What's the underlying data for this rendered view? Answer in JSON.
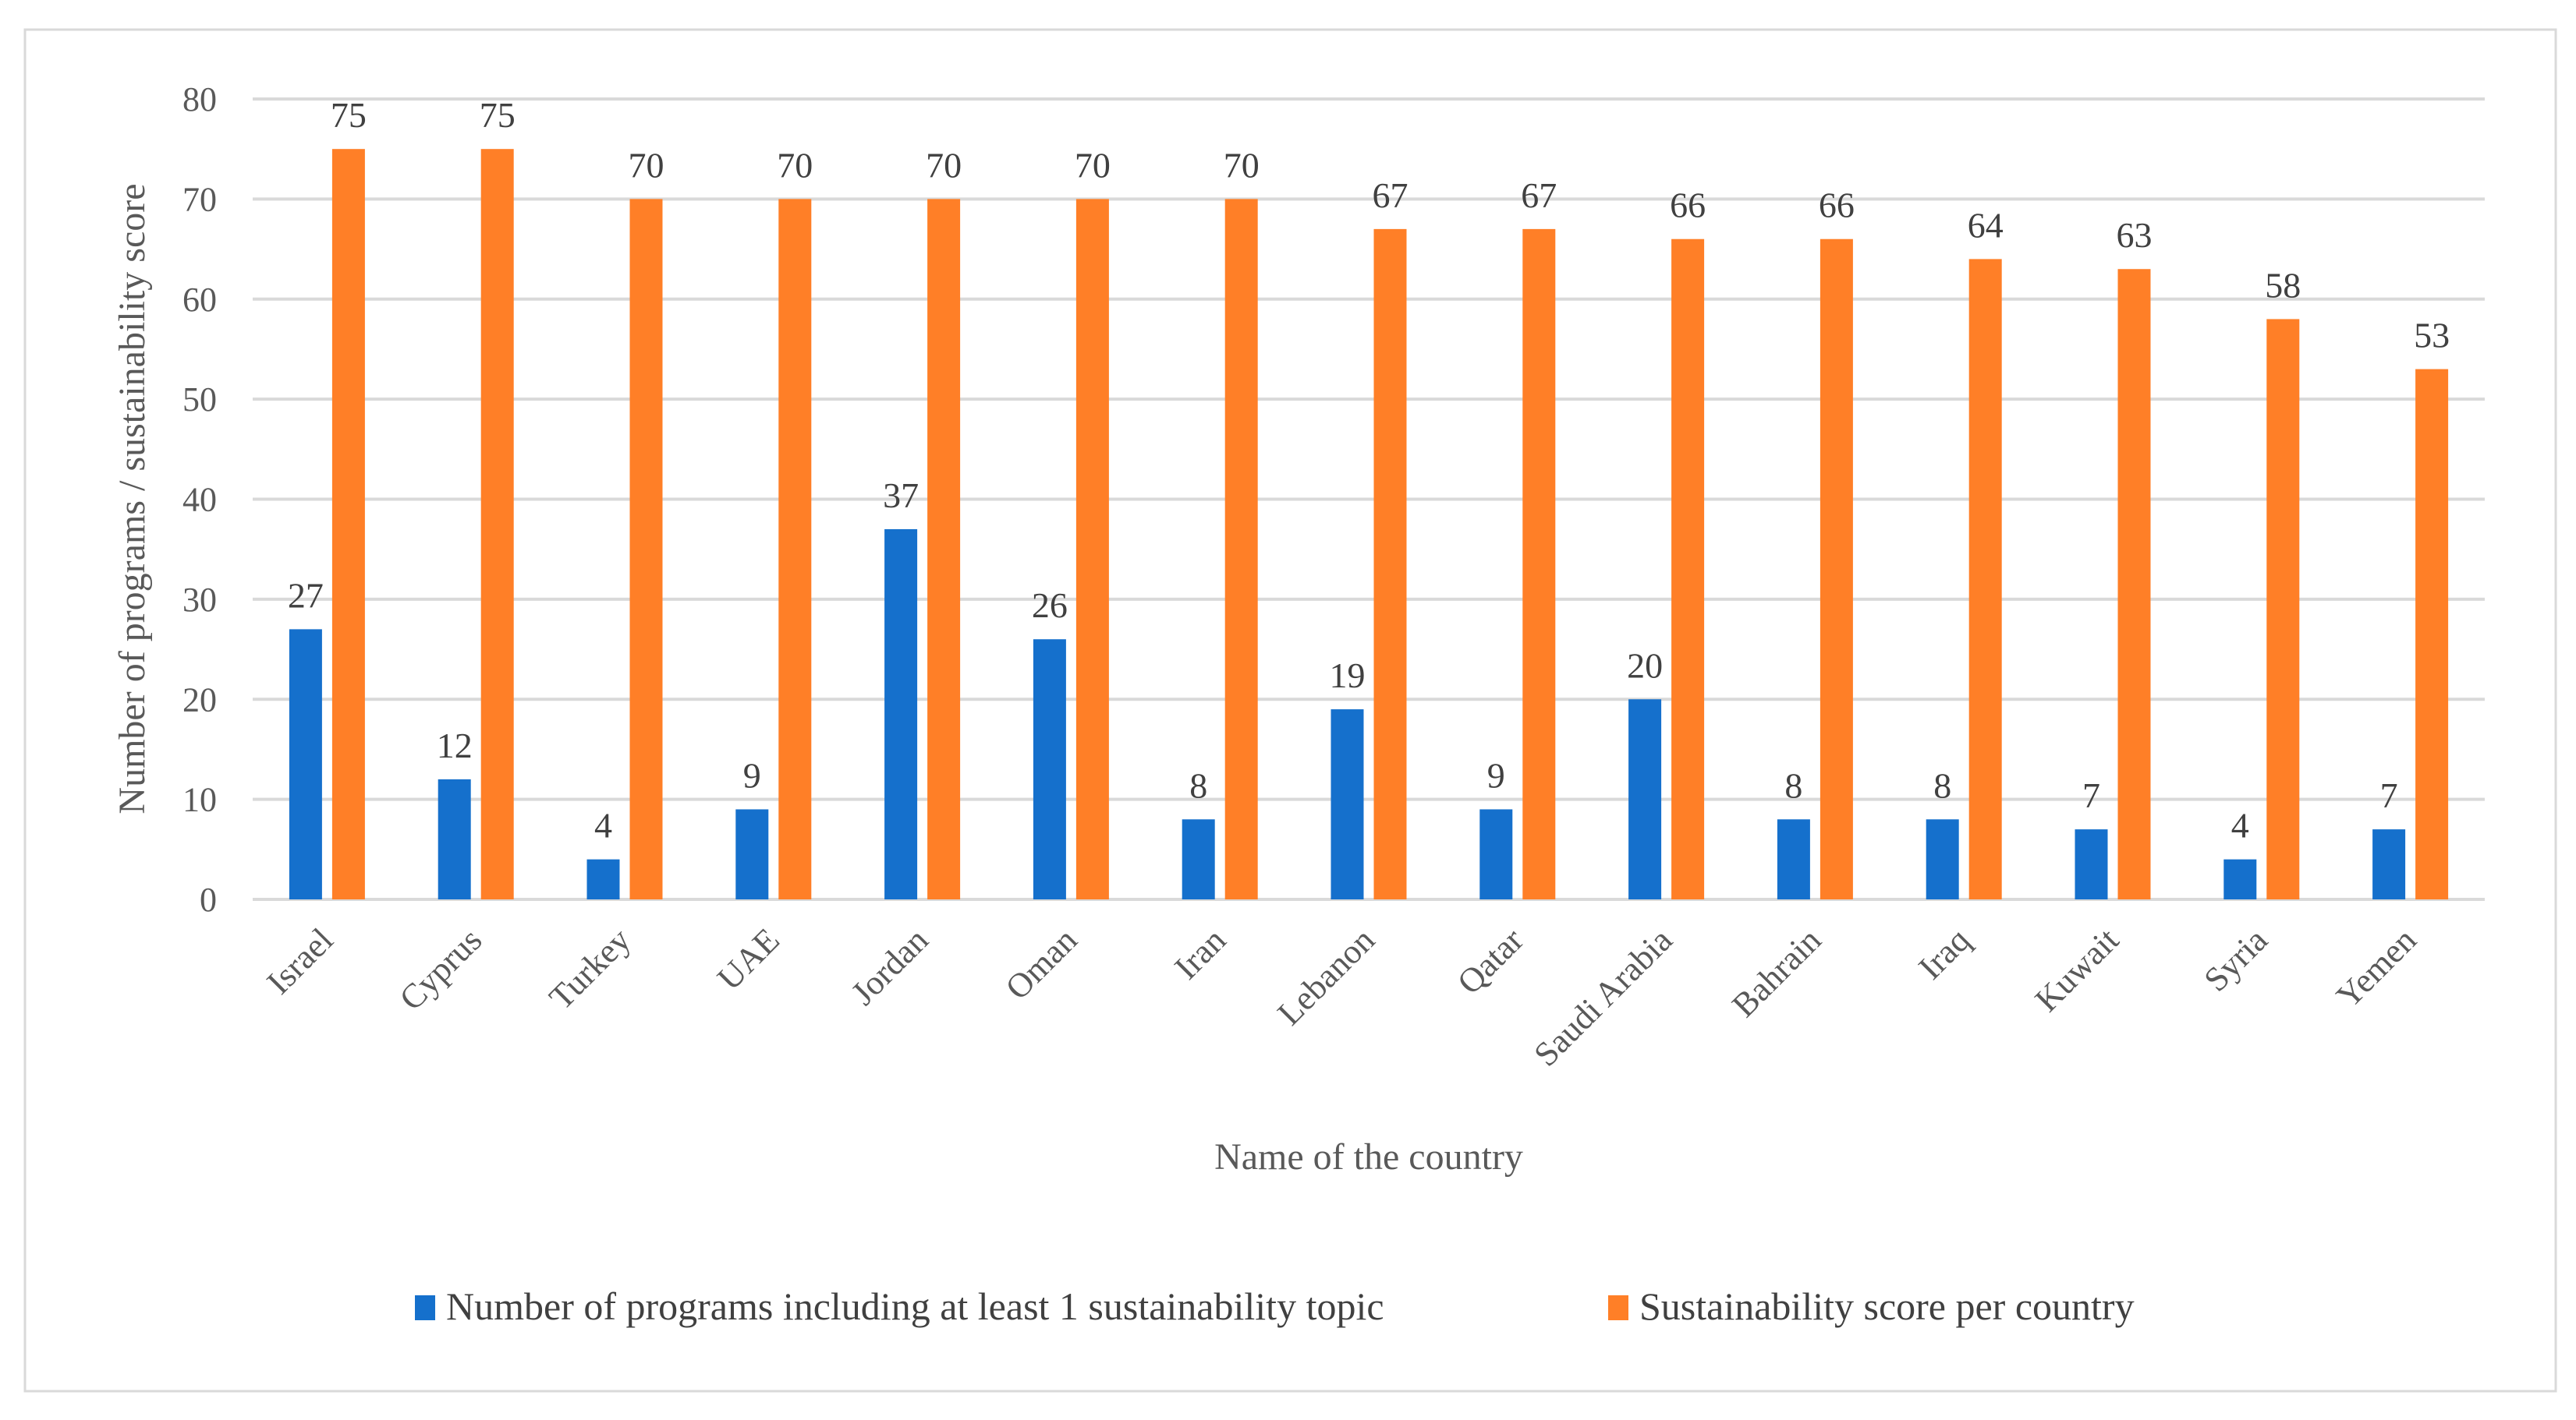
{
  "chart_data": {
    "type": "bar",
    "title": "",
    "xlabel": "Name of the country",
    "ylabel": "Number of programs / sustainability score",
    "ylim": [
      0,
      80
    ],
    "yticks": [
      0,
      10,
      20,
      30,
      40,
      50,
      60,
      70,
      80
    ],
    "grid": true,
    "legend_position": "bottom",
    "categories": [
      "Israel",
      "Cyprus",
      "Turkey",
      "UAE",
      "Jordan",
      "Oman",
      "Iran",
      "Lebanon",
      "Qatar",
      "Saudi Arabia",
      "Bahrain",
      "Iraq",
      "Kuwait",
      "Syria",
      "Yemen"
    ],
    "series": [
      {
        "name": "Number of programs including at least 1 sustainability topic",
        "color": "#1570CC",
        "values": [
          27,
          12,
          4,
          9,
          37,
          26,
          8,
          19,
          9,
          20,
          8,
          8,
          7,
          4,
          7
        ]
      },
      {
        "name": "Sustainability score per country",
        "color": "#FF7F27",
        "values": [
          75,
          75,
          70,
          70,
          70,
          70,
          70,
          67,
          67,
          66,
          66,
          64,
          63,
          58,
          53
        ]
      }
    ]
  }
}
